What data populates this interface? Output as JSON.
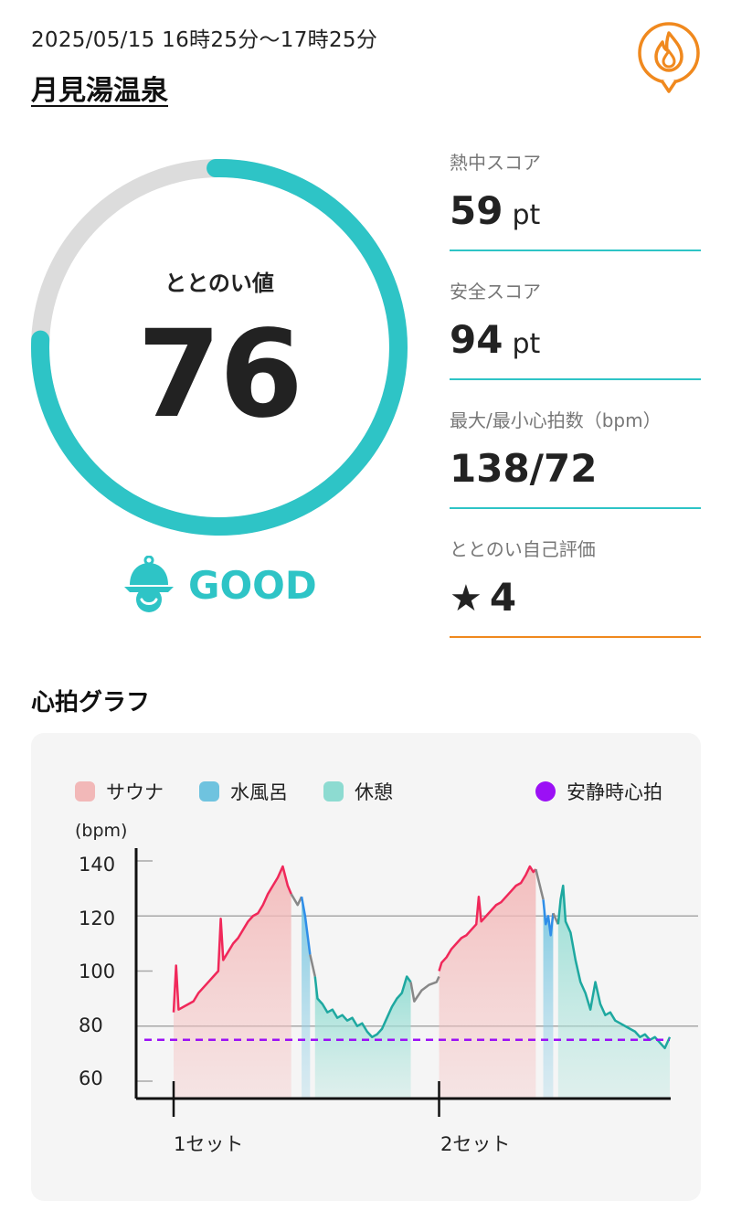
{
  "header": {
    "datetime": "2025/05/15 16時25分〜17時25分",
    "facility": "月見湯温泉"
  },
  "score": {
    "label": "ととのい値",
    "value": "76",
    "fraction": 0.76,
    "status": "GOOD"
  },
  "metrics": [
    {
      "label": "熱中スコア",
      "value": "59",
      "unit": "pt"
    },
    {
      "label": "安全スコア",
      "value": "94",
      "unit": "pt"
    },
    {
      "label": "最大/最小心拍数（bpm）",
      "value": "138/72",
      "unit": ""
    },
    {
      "label": "ととのい自己評価",
      "star": "★",
      "value": "4",
      "unit": ""
    }
  ],
  "graph": {
    "title": "心拍グラフ"
  },
  "colors": {
    "accent": "#2ec4c6",
    "sauna": "#f2b8b8",
    "cold_bath": "#6fc3df",
    "rest": "#8ddbd1",
    "resting_hr": "#9b10f5",
    "orange": "#f0891e"
  },
  "chart_data": {
    "type": "line",
    "ylabel": "(bpm)",
    "ylim": [
      56,
      144
    ],
    "yticks": [
      "140",
      "120",
      "100",
      "80",
      "60"
    ],
    "ytick_values": [
      140,
      120,
      100,
      80,
      60
    ],
    "xlim": [
      0,
      100
    ],
    "xtick_labels": [
      "1セット",
      "2セット"
    ],
    "xtick_positions": [
      0,
      53.5
    ],
    "legend": [
      {
        "name": "サウナ",
        "color": "#f2b8b8"
      },
      {
        "name": "水風呂",
        "color": "#6fc3df"
      },
      {
        "name": "休憩",
        "color": "#8ddbd1"
      },
      {
        "name": "安静時心拍",
        "color": "#9b10f5"
      }
    ],
    "resting_hr": 75,
    "segments": [
      {
        "phase": "sauna",
        "x": [
          0,
          0.5,
          1,
          2,
          3,
          4,
          5,
          6,
          7,
          8,
          9,
          9.5,
          10,
          11,
          12,
          13,
          14,
          15,
          16,
          17,
          18,
          19,
          20,
          21,
          22,
          23,
          23.7
        ],
        "y": [
          85,
          102,
          86,
          87,
          88,
          89,
          92,
          94,
          96,
          98,
          100,
          119,
          104,
          107,
          110,
          112,
          115,
          118,
          120,
          121,
          124,
          128,
          131,
          134,
          138,
          131,
          128
        ]
      },
      {
        "phase": "transition",
        "x": [
          23.7,
          25,
          25.8
        ],
        "y": [
          128,
          124,
          127
        ]
      },
      {
        "phase": "cold",
        "x": [
          25.8,
          26.5,
          27.5
        ],
        "y": [
          127,
          120,
          106
        ]
      },
      {
        "phase": "transition",
        "x": [
          27.5,
          28.5
        ],
        "y": [
          106,
          98
        ]
      },
      {
        "phase": "rest",
        "x": [
          28.5,
          29,
          30,
          31,
          32,
          33,
          34,
          35,
          36,
          37,
          38,
          39,
          40,
          41,
          42,
          43,
          44,
          45,
          46,
          47,
          47.8
        ],
        "y": [
          98,
          90,
          88,
          85,
          86,
          83,
          84,
          82,
          83,
          80,
          81,
          78,
          76,
          77,
          79,
          83,
          87,
          90,
          92,
          98,
          96
        ]
      },
      {
        "phase": "transition",
        "x": [
          47.8,
          48.5,
          50,
          51.5,
          53,
          53.5
        ],
        "y": [
          96,
          89,
          93,
          95,
          96,
          98
        ]
      },
      {
        "phase": "sauna",
        "x": [
          53.5,
          54,
          55,
          56,
          57,
          58,
          59,
          60,
          61,
          61.5,
          62,
          63,
          64,
          65,
          66,
          67,
          68,
          69,
          70,
          71,
          71.8,
          72.5,
          73
        ],
        "y": [
          100,
          103,
          105,
          108,
          110,
          112,
          113,
          115,
          117,
          127,
          118,
          120,
          122,
          124,
          125,
          127,
          129,
          131,
          132,
          135,
          138,
          136,
          137
        ]
      },
      {
        "phase": "transition",
        "x": [
          73,
          74.5
        ],
        "y": [
          137,
          126
        ]
      },
      {
        "phase": "cold",
        "x": [
          74.5,
          75,
          75.5,
          76,
          76.5
        ],
        "y": [
          126,
          117,
          120,
          113,
          121
        ]
      },
      {
        "phase": "transition",
        "x": [
          76.5,
          77.5
        ],
        "y": [
          121,
          117
        ]
      },
      {
        "phase": "rest",
        "x": [
          77.5,
          78,
          78.5,
          79,
          80,
          81,
          82,
          83,
          84,
          85,
          86,
          87,
          88,
          89,
          90,
          91,
          92,
          93,
          94,
          95,
          96,
          97,
          98,
          99,
          100
        ],
        "y": [
          117,
          126,
          131,
          118,
          114,
          104,
          96,
          92,
          86,
          96,
          88,
          84,
          85,
          82,
          81,
          80,
          79,
          78,
          76,
          77,
          75,
          76,
          74,
          72,
          76
        ]
      }
    ]
  }
}
